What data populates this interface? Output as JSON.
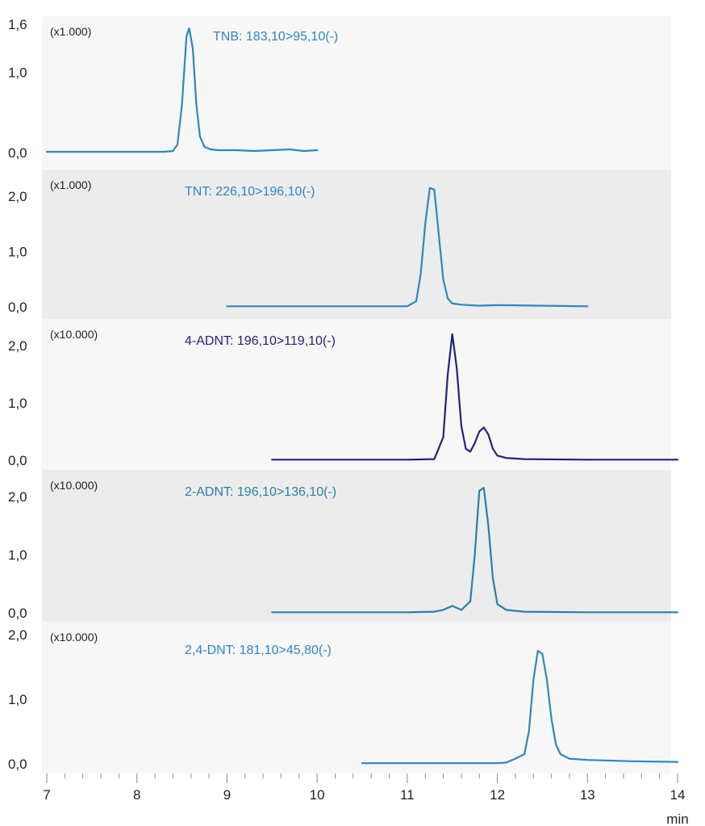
{
  "chart_data": {
    "type": "line",
    "xlabel": "min",
    "xlim": [
      7,
      14
    ],
    "x_ticks": [
      "7",
      "8",
      "9",
      "10",
      "11",
      "12",
      "13",
      "14"
    ],
    "panels": [
      {
        "multiplier": "(x1.000)",
        "series_name": "TNB: 183,10>95,10(-)",
        "color": "#2f86c1",
        "ylim": [
          0,
          1.6
        ],
        "y_ticks": [
          {
            "v": 1.6,
            "t": "1,6"
          },
          {
            "v": 1.0,
            "t": "1,0"
          },
          {
            "v": 0.0,
            "t": "0,0"
          }
        ],
        "x": [
          7.0,
          7.5,
          8.0,
          8.3,
          8.4,
          8.45,
          8.5,
          8.55,
          8.58,
          8.62,
          8.66,
          8.7,
          8.75,
          8.82,
          8.9,
          9.1,
          9.3,
          9.5,
          9.7,
          9.85,
          10.0
        ],
        "y": [
          0.01,
          0.01,
          0.01,
          0.01,
          0.02,
          0.1,
          0.6,
          1.45,
          1.55,
          1.3,
          0.6,
          0.2,
          0.07,
          0.04,
          0.03,
          0.03,
          0.02,
          0.03,
          0.04,
          0.02,
          0.03
        ],
        "band": false
      },
      {
        "multiplier": "(x1.000)",
        "series_name": "TNT: 226,10>196,10(-)",
        "color": "#2f86c1",
        "ylim": [
          0,
          2.3
        ],
        "y_ticks": [
          {
            "v": 2.0,
            "t": "2,0"
          },
          {
            "v": 1.0,
            "t": "1,0"
          },
          {
            "v": 0.0,
            "t": "0,0"
          }
        ],
        "x": [
          9.0,
          9.5,
          10.0,
          10.5,
          11.0,
          11.1,
          11.15,
          11.2,
          11.25,
          11.3,
          11.35,
          11.4,
          11.45,
          11.5,
          11.6,
          11.8,
          12.0,
          12.5,
          13.0
        ],
        "y": [
          0.01,
          0.01,
          0.01,
          0.01,
          0.01,
          0.1,
          0.6,
          1.5,
          2.15,
          2.12,
          1.3,
          0.5,
          0.15,
          0.06,
          0.04,
          0.02,
          0.03,
          0.02,
          0.01
        ],
        "band": true
      },
      {
        "multiplier": "(x10.000)",
        "series_name": "4-ADNT: 196,10>119,10(-)",
        "color": "#23237a",
        "ylim": [
          0,
          2.3
        ],
        "y_ticks": [
          {
            "v": 2.0,
            "t": "2,0"
          },
          {
            "v": 1.0,
            "t": "1,0"
          },
          {
            "v": 0.0,
            "t": "0,0"
          }
        ],
        "x": [
          9.5,
          10.0,
          10.5,
          11.0,
          11.3,
          11.4,
          11.45,
          11.5,
          11.55,
          11.6,
          11.65,
          11.7,
          11.75,
          11.8,
          11.85,
          11.9,
          11.95,
          12.0,
          12.1,
          12.3,
          13.0,
          14.0
        ],
        "y": [
          0.01,
          0.01,
          0.01,
          0.01,
          0.02,
          0.4,
          1.5,
          2.2,
          1.6,
          0.6,
          0.2,
          0.15,
          0.3,
          0.5,
          0.57,
          0.45,
          0.2,
          0.08,
          0.04,
          0.02,
          0.01,
          0.01
        ],
        "band": false
      },
      {
        "multiplier": "(x10.000)",
        "series_name": "2-ADNT: 196,10>136,10(-)",
        "color": "#2a7fa8",
        "ylim": [
          0,
          2.3
        ],
        "y_ticks": [
          {
            "v": 2.0,
            "t": "2,0"
          },
          {
            "v": 1.0,
            "t": "1,0"
          },
          {
            "v": 0.0,
            "t": "0,0"
          }
        ],
        "x": [
          9.5,
          10.0,
          10.5,
          11.0,
          11.3,
          11.4,
          11.5,
          11.6,
          11.7,
          11.75,
          11.8,
          11.85,
          11.9,
          11.95,
          12.0,
          12.1,
          12.3,
          13.0,
          14.0
        ],
        "y": [
          0.01,
          0.01,
          0.01,
          0.01,
          0.02,
          0.05,
          0.12,
          0.05,
          0.2,
          1.0,
          2.1,
          2.15,
          1.5,
          0.6,
          0.15,
          0.05,
          0.02,
          0.01,
          0.01
        ],
        "band": true
      },
      {
        "multiplier": "(x10.000)",
        "series_name": "2,4-DNT: 181,10>45,80(-)",
        "color": "#2f86c1",
        "ylim": [
          0,
          2.0
        ],
        "y_ticks": [
          {
            "v": 2.0,
            "t": "2,0"
          },
          {
            "v": 1.0,
            "t": "1,0"
          },
          {
            "v": 0.0,
            "t": "0,0"
          }
        ],
        "x": [
          10.5,
          11.0,
          11.5,
          12.0,
          12.1,
          12.2,
          12.3,
          12.35,
          12.4,
          12.45,
          12.5,
          12.55,
          12.6,
          12.65,
          12.7,
          12.8,
          13.0,
          13.5,
          14.0
        ],
        "y": [
          0.01,
          0.01,
          0.01,
          0.01,
          0.02,
          0.08,
          0.15,
          0.5,
          1.3,
          1.75,
          1.7,
          1.3,
          0.7,
          0.3,
          0.15,
          0.08,
          0.06,
          0.04,
          0.03
        ],
        "band": false
      }
    ]
  }
}
